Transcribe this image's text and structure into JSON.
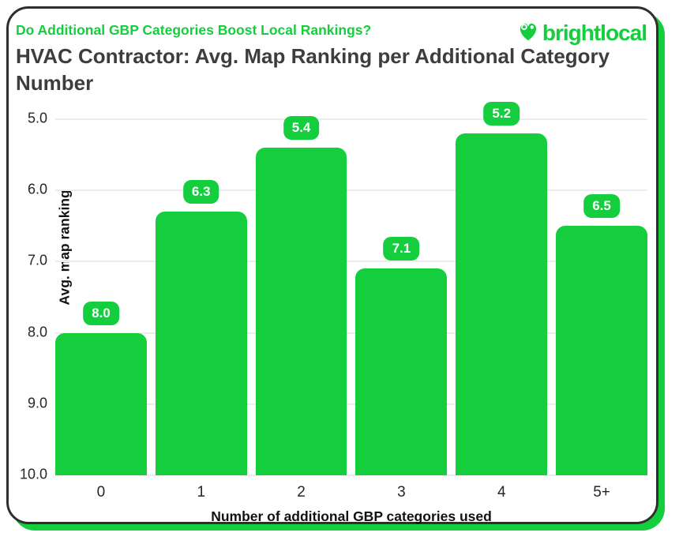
{
  "header": {
    "kicker": "Do Additional GBP Categories Boost Local Rankings?",
    "title": "HVAC Contractor: Avg. Map Ranking per Additional Category Number",
    "logo_text": "brightlocal",
    "logo_icon": "brightlocal-heart-pin-icon"
  },
  "colors": {
    "brand_green": "#14CE3E",
    "title_gray": "#3D3D3D",
    "grid_gray": "#ECECEC",
    "card_border": "#2F2F2F",
    "tick_text": "#262626",
    "badge_text": "#FFFFFF",
    "background": "#FFFFFF"
  },
  "chart_data": {
    "type": "bar",
    "categories": [
      "0",
      "1",
      "2",
      "3",
      "4",
      "5+"
    ],
    "values": [
      8.0,
      6.3,
      5.4,
      7.1,
      5.2,
      6.5
    ],
    "value_labels": [
      "8.0",
      "6.3",
      "5.4",
      "7.1",
      "5.2",
      "6.5"
    ],
    "title": "HVAC Contractor: Avg. Map Ranking per Additional Category Number",
    "xlabel": "Number of additional GBP categories used",
    "ylabel": "Avg. map ranking",
    "yticks": [
      "5.0",
      "6.0",
      "7.0",
      "8.0",
      "9.0",
      "10.0"
    ],
    "ylim": [
      5.0,
      10.0
    ],
    "y_axis_inverted": true,
    "grid": "horizontal",
    "legend": "none",
    "bar_color": "#14CE3E",
    "bar_label_style": "rounded-green-badge-white-text"
  }
}
